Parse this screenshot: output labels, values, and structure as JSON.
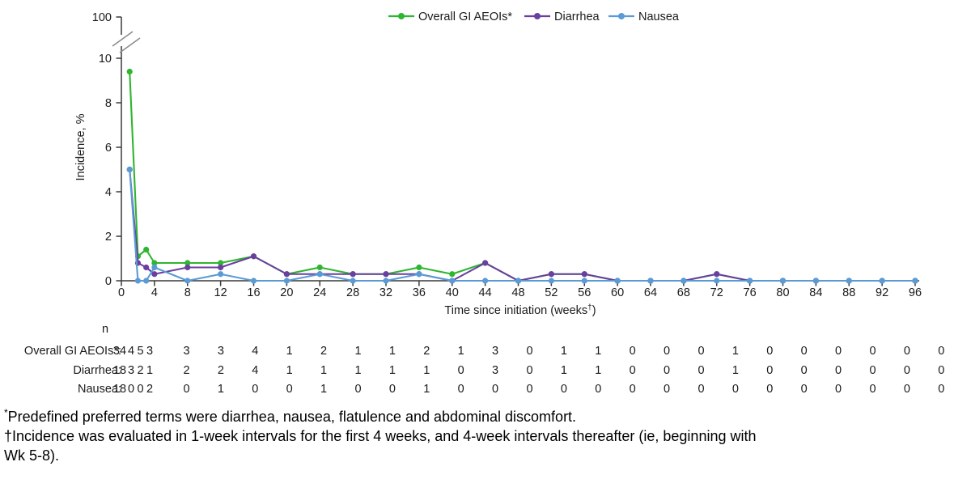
{
  "chart_data": {
    "type": "line",
    "title": "",
    "ylabel": "Incidence, %",
    "xlabel": {
      "pre": "Time since initiation (weeks",
      "sup": "†",
      "post": ")"
    },
    "x_weeks": [
      1,
      2,
      3,
      4,
      8,
      12,
      16,
      20,
      24,
      28,
      32,
      36,
      40,
      44,
      48,
      52,
      56,
      60,
      64,
      68,
      72,
      76,
      80,
      84,
      88,
      92,
      96
    ],
    "x_ticks": [
      0,
      4,
      8,
      12,
      16,
      20,
      24,
      28,
      32,
      36,
      40,
      44,
      48,
      52,
      56,
      60,
      64,
      68,
      72,
      76,
      80,
      84,
      88,
      92,
      96
    ],
    "y_ticks": [
      0,
      2,
      4,
      6,
      8,
      10
    ],
    "ylim": [
      0,
      10
    ],
    "xlim": [
      0,
      96
    ],
    "y_axis_break": {
      "enabled": true,
      "top_label": "100"
    },
    "grid": "off",
    "legend_position": "top",
    "series": [
      {
        "name": "Overall GI AEOIs*",
        "color": "#2fb52f",
        "incidence_pct": [
          9.4,
          1.1,
          1.4,
          0.8,
          0.8,
          0.8,
          1.1,
          0.3,
          0.6,
          0.3,
          0.3,
          0.6,
          0.3,
          0.8,
          0,
          0.3,
          0.3,
          0,
          0,
          0,
          0.3,
          0,
          0,
          0,
          0,
          0,
          0
        ],
        "n": [
          34,
          4,
          5,
          3,
          3,
          3,
          4,
          1,
          2,
          1,
          1,
          2,
          1,
          3,
          0,
          1,
          1,
          0,
          0,
          0,
          1,
          0,
          0,
          0,
          0,
          0,
          0
        ]
      },
      {
        "name": "Diarrhea",
        "color": "#6a3fa0",
        "incidence_pct": [
          5.0,
          0.8,
          0.6,
          0.3,
          0.6,
          0.6,
          1.1,
          0.3,
          0.3,
          0.3,
          0.3,
          0.3,
          0,
          0.8,
          0,
          0.3,
          0.3,
          0,
          0,
          0,
          0.3,
          0,
          0,
          0,
          0,
          0,
          0
        ],
        "n": [
          18,
          3,
          2,
          1,
          2,
          2,
          4,
          1,
          1,
          1,
          1,
          1,
          0,
          3,
          0,
          1,
          1,
          0,
          0,
          0,
          1,
          0,
          0,
          0,
          0,
          0,
          0
        ]
      },
      {
        "name": "Nausea",
        "color": "#5b9bd5",
        "incidence_pct": [
          5.0,
          0,
          0,
          0.6,
          0,
          0.3,
          0,
          0,
          0.3,
          0,
          0,
          0.3,
          0,
          0,
          0,
          0,
          0,
          0,
          0,
          0,
          0,
          0,
          0,
          0,
          0,
          0,
          0
        ],
        "n": [
          18,
          0,
          0,
          2,
          0,
          1,
          0,
          0,
          1,
          0,
          0,
          1,
          0,
          0,
          0,
          0,
          0,
          0,
          0,
          0,
          0,
          0,
          0,
          0,
          0,
          0,
          0
        ]
      }
    ]
  },
  "n_table": {
    "header": "n",
    "rows": [
      {
        "label": "Overall GI AEOIs*:",
        "values": [
          34,
          4,
          5,
          3,
          3,
          3,
          4,
          1,
          2,
          1,
          1,
          2,
          1,
          3,
          0,
          1,
          1,
          0,
          0,
          0,
          1,
          0,
          0,
          0,
          0,
          0,
          0
        ]
      },
      {
        "label": "Diarrhea:",
        "values": [
          18,
          3,
          2,
          1,
          2,
          2,
          4,
          1,
          1,
          1,
          1,
          1,
          0,
          3,
          0,
          1,
          1,
          0,
          0,
          0,
          1,
          0,
          0,
          0,
          0,
          0,
          0
        ]
      },
      {
        "label": "Nausea:",
        "values": [
          18,
          0,
          0,
          2,
          0,
          1,
          0,
          0,
          1,
          0,
          0,
          1,
          0,
          0,
          0,
          0,
          0,
          0,
          0,
          0,
          0,
          0,
          0,
          0,
          0,
          0,
          0
        ]
      }
    ]
  },
  "footnotes": {
    "f1_marker": "*",
    "f1_text": "Predefined preferred terms were diarrhea, nausea, flatulence and abdominal discomfort.",
    "f2_line1": "†Incidence was evaluated in 1-week intervals for the first 4 weeks, and 4-week intervals thereafter (ie, beginning with",
    "f2_line2": "Wk 5-8)."
  }
}
